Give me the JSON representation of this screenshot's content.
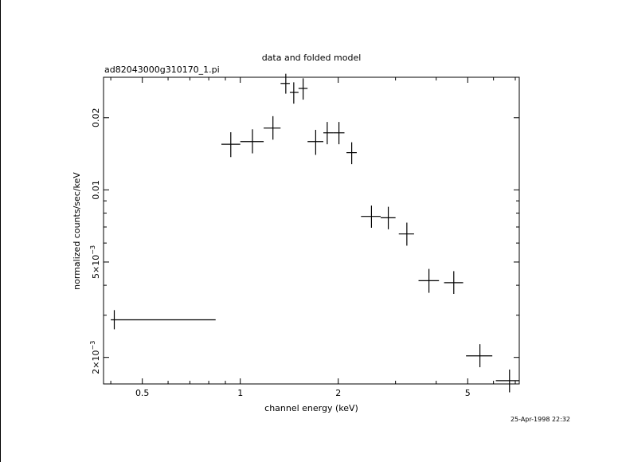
{
  "chart_data": {
    "type": "scatter",
    "title": "data and folded model",
    "subtitle": "ad82043000g310170_1.pi",
    "xlabel": "channel energy (keV)",
    "ylabel": "normalized counts/sec/keV",
    "timestamp": "25-Apr-1998 22:32",
    "xscale": "log",
    "yscale": "log",
    "xlim": [
      0.38,
      7.2
    ],
    "ylim": [
      0.00155,
      0.0295
    ],
    "x_ticks": [
      {
        "value": 0.5,
        "label": "0.5"
      },
      {
        "value": 1,
        "label": "1"
      },
      {
        "value": 2,
        "label": "2"
      },
      {
        "value": 5,
        "label": "5"
      }
    ],
    "y_ticks": [
      {
        "value": 0.002,
        "base": "2×10",
        "exp": "−3"
      },
      {
        "value": 0.005,
        "base": "5×10",
        "exp": "−3"
      },
      {
        "value": 0.01,
        "label": "0.01"
      },
      {
        "value": 0.02,
        "label": "0.02"
      }
    ],
    "series": [
      {
        "points": [
          {
            "x": 0.41,
            "xlo": 0.4,
            "xhi": 0.84,
            "y": 0.00287,
            "ylo": 0.00262,
            "yhi": 0.00315
          },
          {
            "x": 0.935,
            "xlo": 0.875,
            "xhi": 1.0,
            "y": 0.0155,
            "ylo": 0.0137,
            "yhi": 0.0174
          },
          {
            "x": 1.09,
            "xlo": 1.0,
            "xhi": 1.18,
            "y": 0.0159,
            "ylo": 0.0142,
            "yhi": 0.0179
          },
          {
            "x": 1.26,
            "xlo": 1.18,
            "xhi": 1.33,
            "y": 0.0181,
            "ylo": 0.0162,
            "yhi": 0.0203
          },
          {
            "x": 1.38,
            "xlo": 1.33,
            "xhi": 1.42,
            "y": 0.0278,
            "ylo": 0.0252,
            "yhi": 0.0305
          },
          {
            "x": 1.46,
            "xlo": 1.42,
            "xhi": 1.51,
            "y": 0.0255,
            "ylo": 0.0229,
            "yhi": 0.0281
          },
          {
            "x": 1.56,
            "xlo": 1.51,
            "xhi": 1.61,
            "y": 0.0265,
            "ylo": 0.0238,
            "yhi": 0.0292
          },
          {
            "x": 1.705,
            "xlo": 1.61,
            "xhi": 1.8,
            "y": 0.0159,
            "ylo": 0.014,
            "yhi": 0.0178
          },
          {
            "x": 1.85,
            "xlo": 1.8,
            "xhi": 1.93,
            "y": 0.0173,
            "ylo": 0.0155,
            "yhi": 0.0192
          },
          {
            "x": 2.01,
            "xlo": 1.93,
            "xhi": 2.09,
            "y": 0.0173,
            "ylo": 0.0155,
            "yhi": 0.0192
          },
          {
            "x": 2.2,
            "xlo": 2.12,
            "xhi": 2.28,
            "y": 0.0143,
            "ylo": 0.0128,
            "yhi": 0.0158
          },
          {
            "x": 2.53,
            "xlo": 2.35,
            "xhi": 2.7,
            "y": 0.00775,
            "ylo": 0.00695,
            "yhi": 0.0086
          },
          {
            "x": 2.85,
            "xlo": 2.7,
            "xhi": 3.0,
            "y": 0.00765,
            "ylo": 0.00685,
            "yhi": 0.0085
          },
          {
            "x": 3.25,
            "xlo": 3.07,
            "xhi": 3.42,
            "y": 0.00655,
            "ylo": 0.00585,
            "yhi": 0.0073
          },
          {
            "x": 3.8,
            "xlo": 3.53,
            "xhi": 4.08,
            "y": 0.00418,
            "ylo": 0.00372,
            "yhi": 0.00468
          },
          {
            "x": 4.53,
            "xlo": 4.23,
            "xhi": 4.84,
            "y": 0.0041,
            "ylo": 0.00368,
            "yhi": 0.00458
          },
          {
            "x": 5.45,
            "xlo": 4.94,
            "xhi": 5.95,
            "y": 0.00203,
            "ylo": 0.00182,
            "yhi": 0.00227
          },
          {
            "x": 6.72,
            "xlo": 6.1,
            "xhi": 7.18,
            "y": 0.0016,
            "ylo": 0.00143,
            "yhi": 0.00178
          }
        ]
      }
    ]
  }
}
